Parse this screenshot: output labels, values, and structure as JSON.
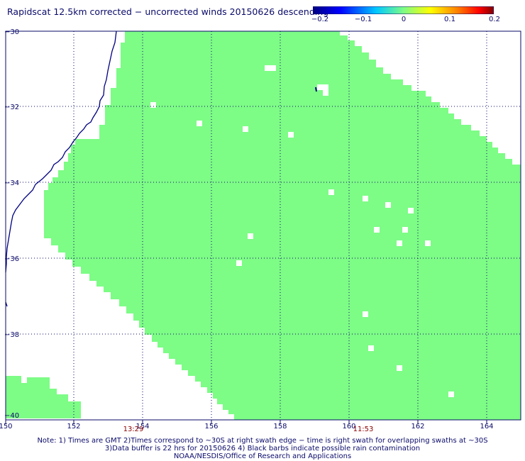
{
  "title": "Rapidscat 12.5km corrected − uncorrected winds 20150626 descending",
  "colorbar": {
    "labels": [
      "−0.2",
      "−0.1",
      "0",
      "0.1",
      "0.2"
    ],
    "colors": [
      "#000080",
      "#0000ff",
      "#00ffff",
      "#80ff80",
      "#ffff00",
      "#ff8000",
      "#ff0000",
      "#800000"
    ]
  },
  "map": {
    "lon_range": [
      150,
      165
    ],
    "lat_range": [
      -30,
      -40
    ],
    "lon_ticks": [
      "150",
      "152",
      "154",
      "156",
      "158",
      "160",
      "162",
      "164"
    ],
    "lat_ticks": [
      "−30",
      "−32",
      "−34",
      "−36",
      "−38",
      "−40"
    ],
    "swath_fill_color": "#7dfc86",
    "coast_color": "#000080",
    "grid_color": "#000080",
    "swath_times": [
      "13:29",
      "11:53"
    ],
    "swath_time_color": "#8b0000"
  },
  "notes": {
    "line1": "Note: 1) Times are GMT 2)Times correspond to ~30S at right swath edge − time is right swath for overlapping swaths at ~30S",
    "line2": "3)Data buffer is 22 hrs for 20150626 4) Black barbs indicate possible rain contamination",
    "line3": "NOAA/NESDIS/Office of Research and Applications"
  }
}
